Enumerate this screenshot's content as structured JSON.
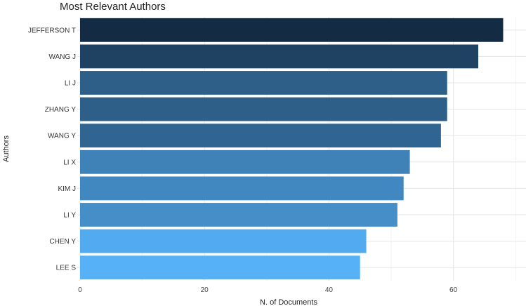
{
  "chart_data": {
    "type": "bar",
    "orientation": "horizontal",
    "title": "Most Relevant Authors",
    "xlabel": "N. of Documents",
    "ylabel": "Authors",
    "categories": [
      "JEFFERSON T",
      "WANG J",
      "LI J",
      "ZHANG Y",
      "WANG Y",
      "LI X",
      "KIM J",
      "LI Y",
      "CHEN Y",
      "LEE S"
    ],
    "values": [
      68,
      64,
      59,
      59,
      58,
      53,
      52,
      51,
      46,
      45
    ],
    "xlim": [
      0,
      70
    ],
    "xticks": [
      0,
      20,
      40,
      60
    ],
    "grid": true,
    "legend": "none",
    "colors": {
      "high": "#132b43",
      "low": "#56b1f7"
    }
  }
}
